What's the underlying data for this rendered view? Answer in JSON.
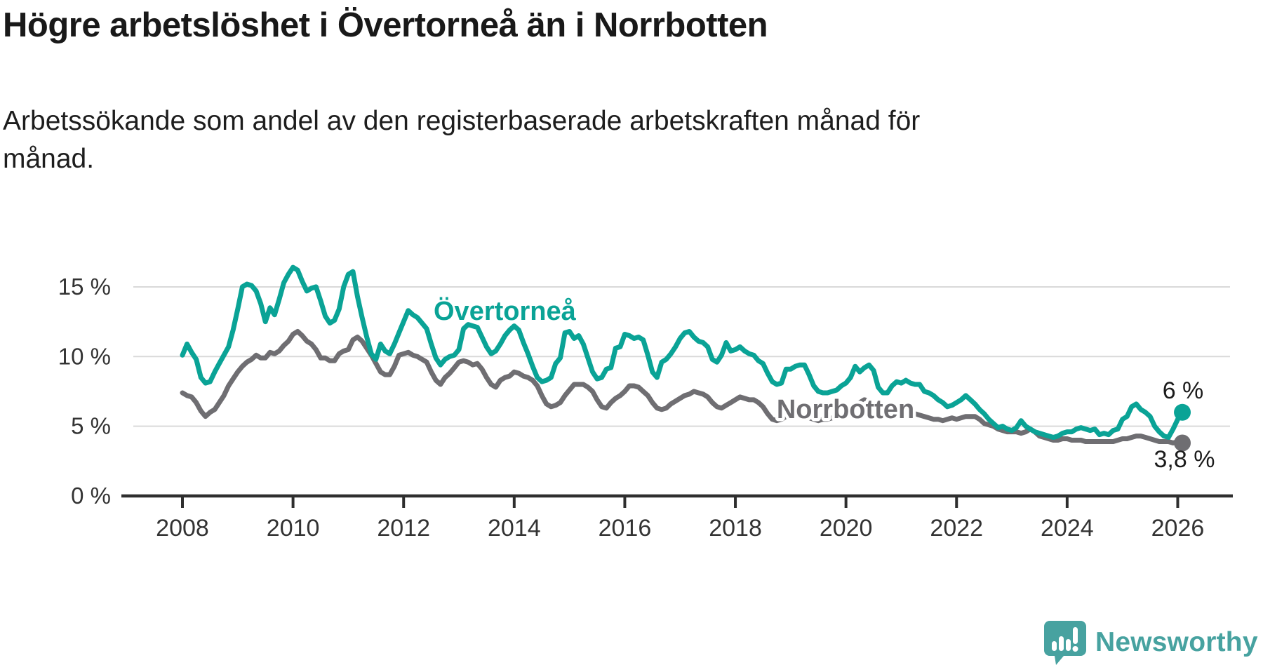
{
  "header": {
    "title": "Högre arbetslöshet i Övertorneå än i Norrbotten",
    "subtitle_line1": "Arbetssökande som andel av den registerbaserade arbetskraften månad för",
    "subtitle_line2": "månad."
  },
  "footer": {
    "brand": "Newsworthy"
  },
  "colors": {
    "overtornea": "#0aa396",
    "norrbotten": "#6f6e72",
    "grid": "#d9d9d9",
    "axis": "#2e2e2e",
    "tick_text": "#333333",
    "annotation_text": "#1b1b1b",
    "brand_teal": "#47a2a0"
  },
  "chart_data": {
    "type": "line",
    "title": "Högre arbetslöshet i Övertorneå än i Norrbotten",
    "subtitle": "Arbetssökande som andel av den registerbaserade arbetskraften månad för månad.",
    "x_start": {
      "year": 2008,
      "month": 1
    },
    "x_end": {
      "year": 2026,
      "month": 2
    },
    "frequency": "monthly",
    "grid": true,
    "ylim": [
      0,
      17
    ],
    "y_ticks": [
      {
        "value": 0,
        "label": "0 %"
      },
      {
        "value": 5,
        "label": "5 %"
      },
      {
        "value": 10,
        "label": "10 %"
      },
      {
        "value": 15,
        "label": "15 %"
      }
    ],
    "x_tick_years": [
      2008,
      2010,
      2012,
      2014,
      2016,
      2018,
      2020,
      2022,
      2024,
      2026
    ],
    "series": [
      {
        "name": "Norrbotten",
        "color": "#6f6e72",
        "end_label": "3,8 %",
        "last_value": 3.8,
        "values": [
          7.4,
          7.2,
          7.1,
          6.7,
          6.1,
          5.7,
          6.0,
          6.2,
          6.7,
          7.2,
          7.9,
          8.4,
          8.9,
          9.3,
          9.6,
          9.8,
          10.1,
          9.9,
          9.9,
          10.3,
          10.2,
          10.4,
          10.8,
          11.1,
          11.6,
          11.8,
          11.5,
          11.1,
          10.9,
          10.5,
          9.9,
          9.9,
          9.7,
          9.7,
          10.2,
          10.4,
          10.5,
          11.2,
          11.4,
          11.1,
          10.6,
          10.1,
          9.5,
          8.9,
          8.7,
          8.7,
          9.3,
          10.1,
          10.2,
          10.3,
          10.1,
          10.0,
          9.8,
          9.6,
          8.9,
          8.3,
          8.0,
          8.5,
          8.8,
          9.2,
          9.6,
          9.7,
          9.6,
          9.4,
          9.5,
          9.1,
          8.5,
          8.0,
          7.8,
          8.3,
          8.5,
          8.6,
          8.9,
          8.8,
          8.6,
          8.5,
          8.3,
          7.9,
          7.2,
          6.6,
          6.4,
          6.5,
          6.7,
          7.2,
          7.6,
          8.0,
          8.0,
          8.0,
          7.8,
          7.5,
          6.9,
          6.4,
          6.3,
          6.7,
          7.0,
          7.2,
          7.5,
          7.9,
          7.9,
          7.8,
          7.5,
          7.2,
          6.7,
          6.3,
          6.2,
          6.3,
          6.6,
          6.8,
          7.0,
          7.2,
          7.3,
          7.5,
          7.4,
          7.3,
          7.1,
          6.7,
          6.4,
          6.3,
          6.5,
          6.7,
          6.9,
          7.1,
          7.0,
          6.9,
          6.9,
          6.7,
          6.4,
          5.9,
          5.5,
          5.4,
          5.5,
          5.7,
          5.9,
          5.9,
          5.8,
          5.7,
          5.6,
          5.5,
          5.4,
          5.5,
          5.5,
          5.6,
          5.6,
          5.8,
          5.9,
          6.0,
          6.3,
          6.7,
          6.9,
          6.8,
          6.6,
          6.5,
          6.4,
          6.3,
          6.2,
          6.1,
          6.1,
          6.1,
          6.0,
          5.9,
          5.8,
          5.7,
          5.6,
          5.5,
          5.5,
          5.4,
          5.5,
          5.6,
          5.5,
          5.6,
          5.7,
          5.7,
          5.7,
          5.5,
          5.2,
          5.1,
          5.0,
          4.8,
          4.7,
          4.6,
          4.6,
          4.6,
          4.5,
          4.6,
          4.8,
          4.6,
          4.3,
          4.2,
          4.1,
          4.0,
          4.0,
          4.1,
          4.1,
          4.0,
          4.0,
          4.0,
          3.9,
          3.9,
          3.9,
          3.9,
          3.9,
          3.9,
          3.9,
          4.0,
          4.1,
          4.1,
          4.2,
          4.3,
          4.3,
          4.2,
          4.1,
          4.0,
          3.9,
          3.9,
          3.9,
          3.8,
          3.9,
          3.8
        ]
      },
      {
        "name": "Övertorneå",
        "color": "#0aa396",
        "end_label": "6 %",
        "last_value": 6.0,
        "values": [
          10.1,
          10.9,
          10.3,
          9.8,
          8.5,
          8.1,
          8.2,
          8.9,
          9.5,
          10.1,
          10.7,
          11.9,
          13.4,
          15.0,
          15.2,
          15.1,
          14.7,
          13.8,
          12.5,
          13.5,
          13.0,
          14.1,
          15.3,
          15.9,
          16.4,
          16.2,
          15.4,
          14.7,
          14.9,
          15.0,
          14.0,
          12.9,
          12.4,
          12.6,
          13.4,
          15.0,
          15.9,
          16.1,
          14.3,
          12.8,
          11.4,
          10.2,
          9.8,
          10.9,
          10.4,
          10.2,
          10.9,
          11.7,
          12.5,
          13.3,
          13.0,
          12.8,
          12.4,
          12.0,
          10.9,
          9.9,
          9.4,
          9.8,
          10.0,
          10.1,
          10.5,
          12.0,
          12.3,
          12.2,
          12.1,
          11.4,
          10.7,
          10.2,
          10.4,
          10.9,
          11.5,
          11.9,
          12.2,
          11.9,
          11.0,
          10.2,
          9.3,
          8.5,
          8.2,
          8.3,
          8.5,
          9.5,
          9.9,
          11.7,
          11.8,
          11.3,
          11.5,
          10.9,
          9.9,
          8.9,
          8.4,
          8.5,
          9.1,
          9.2,
          10.6,
          10.7,
          11.6,
          11.5,
          11.3,
          11.4,
          11.2,
          10.1,
          8.9,
          8.5,
          9.6,
          9.8,
          10.2,
          10.7,
          11.3,
          11.7,
          11.8,
          11.4,
          11.1,
          11.0,
          10.7,
          9.8,
          9.6,
          10.1,
          11.0,
          10.4,
          10.5,
          10.7,
          10.4,
          10.2,
          10.1,
          9.7,
          9.5,
          8.8,
          8.2,
          8.0,
          8.1,
          9.1,
          9.1,
          9.3,
          9.4,
          9.4,
          8.7,
          7.9,
          7.5,
          7.4,
          7.4,
          7.5,
          7.6,
          7.9,
          8.1,
          8.5,
          9.3,
          8.9,
          9.2,
          9.4,
          9.0,
          7.8,
          7.4,
          7.4,
          7.9,
          8.2,
          8.1,
          8.3,
          8.1,
          8.0,
          8.0,
          7.5,
          7.4,
          7.2,
          6.9,
          6.7,
          6.4,
          6.5,
          6.7,
          6.9,
          7.2,
          6.9,
          6.6,
          6.2,
          5.9,
          5.5,
          5.2,
          4.9,
          5.0,
          4.8,
          4.7,
          4.9,
          5.4,
          5.0,
          4.8,
          4.6,
          4.5,
          4.4,
          4.3,
          4.2,
          4.3,
          4.5,
          4.6,
          4.6,
          4.8,
          4.9,
          4.8,
          4.7,
          4.8,
          4.4,
          4.5,
          4.4,
          4.7,
          4.8,
          5.5,
          5.7,
          6.4,
          6.6,
          6.2,
          6.0,
          5.7,
          5.0,
          4.6,
          4.3,
          4.2,
          4.8,
          5.5,
          6.0
        ]
      }
    ],
    "series_inline_labels": [
      {
        "series": "Övertorneå",
        "text": "Övertorneå"
      },
      {
        "series": "Norrbotten",
        "text": "Norrbotten"
      }
    ],
    "annotations": [
      {
        "series": "Övertorneå",
        "text": "6 %"
      },
      {
        "series": "Norrbotten",
        "text": "3,8 %"
      }
    ],
    "legend_position": "inline"
  }
}
